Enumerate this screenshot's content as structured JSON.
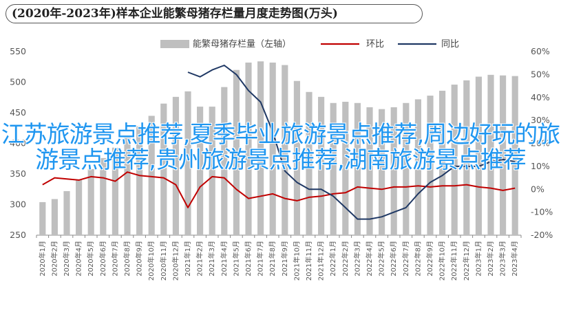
{
  "title": "(2020年-2023年)样本企业能繁母猪存栏量月度走势图(万头)",
  "overlay_text": "江苏旅游景点推荐,夏季毕业旅游景点推荐,周边好玩的旅游景点推荐,贵州旅游景点推荐,湖南旅游景点推荐",
  "colors": {
    "bar": "#bfbfbf",
    "huanbi": "#c00000",
    "tongbi": "#1f3864",
    "overlay": "#1f96f0"
  },
  "chart_data": {
    "type": "bar",
    "title": "(2020年-2023年)样本企业能繁母猪存栏量月度走势图(万头)",
    "left_axis": {
      "ticks": [
        "550",
        "500",
        "450",
        "400",
        "350",
        "300",
        "250"
      ],
      "ylim": [
        250,
        550
      ]
    },
    "right_axis": {
      "ticks": [
        "60%",
        "50%",
        "40%",
        "30%",
        "20%",
        "10%",
        "0%",
        "-10%",
        "-20%"
      ],
      "ylim": [
        -20,
        60
      ]
    },
    "legend": [
      "能繁母猪存栏量（左轴）",
      "环比",
      "同比"
    ],
    "categories": [
      "2020年1月",
      "2020年2月",
      "2020年3月",
      "2020年4月",
      "2020年5月",
      "2020年6月",
      "2020年7月",
      "2020年8月",
      "2020年9月",
      "2020年10月",
      "2020年11月",
      "2020年12月",
      "2021年1月",
      "2021年2月",
      "2021年3月",
      "2021年4月",
      "2021年5月",
      "2021年6月",
      "2021年7月",
      "2021年8月",
      "2021年9月",
      "2021年10月",
      "2021年11月",
      "2021年12月",
      "2022年1月",
      "2022年2月",
      "2022年3月",
      "2022年4月",
      "2022年5月",
      "2022年6月",
      "2022年7月",
      "2022年8月",
      "2022年9月",
      "2022年10月",
      "2022年11月",
      "2022年12月",
      "2023年1月",
      "2023年2月",
      "2023年3月",
      "2023年4月"
    ],
    "series": [
      {
        "name": "能繁母猪存栏量（左轴）",
        "type": "bar",
        "values": [
          304,
          309,
          322,
          340,
          358,
          376,
          393,
          410,
          428,
          445,
          465,
          476,
          485,
          460,
          460,
          492,
          520,
          532,
          534,
          532,
          528,
          502,
          484,
          476,
          466,
          468,
          466,
          459,
          456,
          459,
          466,
          472,
          478,
          486,
          496,
          503,
          509,
          512,
          511,
          510
        ]
      },
      {
        "name": "环比",
        "type": "line",
        "values": [
          2,
          5,
          4.5,
          4,
          5.5,
          5,
          3.5,
          7.5,
          6,
          5.5,
          5,
          2,
          -8,
          1,
          5.5,
          5,
          0,
          -4,
          -3,
          -2,
          -4,
          -5,
          -3.5,
          -3,
          -2,
          -1.5,
          1,
          0.5,
          0,
          1,
          1,
          1.5,
          1,
          1.5,
          1.5,
          2,
          1,
          0.5,
          -0.5,
          0.5
        ]
      },
      {
        "name": "同比",
        "type": "line",
        "values": [
          null,
          null,
          null,
          null,
          null,
          null,
          null,
          null,
          null,
          null,
          null,
          null,
          51,
          49,
          52,
          54,
          50,
          43,
          38,
          25,
          8,
          3,
          0,
          0,
          -3,
          -8,
          -13,
          -13,
          -12,
          -10,
          -8,
          -2,
          3,
          6,
          10,
          10,
          10,
          12,
          13,
          12
        ]
      }
    ]
  }
}
